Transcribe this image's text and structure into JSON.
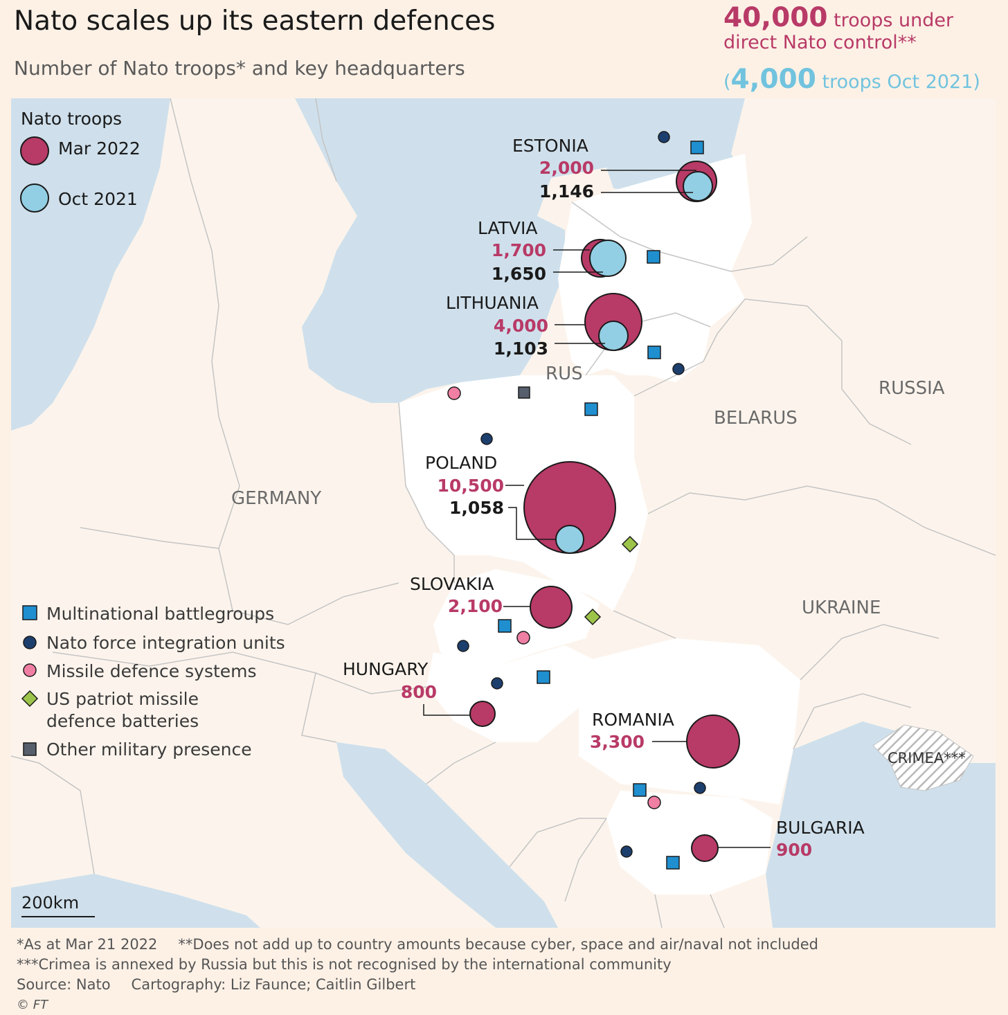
{
  "title": "Nato scales up its eastern defences",
  "subtitle": "Number of Nato troops* and key headquarters",
  "summary": {
    "mar_value": "40,000",
    "mar_text": "troops under",
    "mar_text2": "direct Nato control**",
    "oct_open": "(",
    "oct_value": "4,000",
    "oct_text": "troops Oct 2021)"
  },
  "legend_troops": {
    "heading": "Nato troops",
    "mar": "Mar 2022",
    "oct": "Oct 2021"
  },
  "legend_symbols": [
    {
      "label": "Multinational battlegroups",
      "symbol": "square",
      "color": "#1f8fd0"
    },
    {
      "label": "Nato force integration units",
      "symbol": "circle",
      "color": "#1d3f6e"
    },
    {
      "label": "Missile defence systems",
      "symbol": "circle",
      "color": "#f07fa4"
    },
    {
      "label": "US patriot missile",
      "label2": "defence batteries",
      "symbol": "diamond",
      "color": "#9dc44a"
    },
    {
      "label": "Other military presence",
      "symbol": "square",
      "color": "#565f6b"
    }
  ],
  "colors": {
    "mar": "#b83a67",
    "oct": "#93cfe4",
    "sea": "#cfe0ec",
    "land": "#fcf4ec",
    "highlight_land": "#ffffff"
  },
  "countries": [
    {
      "name": "ESTONIA",
      "mar2022": "2,000",
      "oct2021": "1,146"
    },
    {
      "name": "LATVIA",
      "mar2022": "1,700",
      "oct2021": "1,650"
    },
    {
      "name": "LITHUANIA",
      "mar2022": "4,000",
      "oct2021": "1,103"
    },
    {
      "name": "POLAND",
      "mar2022": "10,500",
      "oct2021": "1,058"
    },
    {
      "name": "SLOVAKIA",
      "mar2022": "2,100"
    },
    {
      "name": "HUNGARY",
      "mar2022": "800"
    },
    {
      "name": "ROMANIA",
      "mar2022": "3,300"
    },
    {
      "name": "BULGARIA",
      "mar2022": "900"
    }
  ],
  "region_labels": {
    "germany": "GERMANY",
    "rus": "RUS",
    "belarus": "BELARUS",
    "russia": "RUSSIA",
    "ukraine": "UKRAINE",
    "crimea": "CRIMEA***"
  },
  "scale": "200km",
  "footer": {
    "note1": "*As at Mar 21 2022",
    "note2": "**Does not add up to country amounts because cyber, space and air/naval not included",
    "note3": "***Crimea is annexed by Russia but this is not recognised by the international community",
    "source": "Source: Nato",
    "credit": "Cartography: Liz Faunce; Caitlin Gilbert",
    "copyright": "© FT"
  }
}
